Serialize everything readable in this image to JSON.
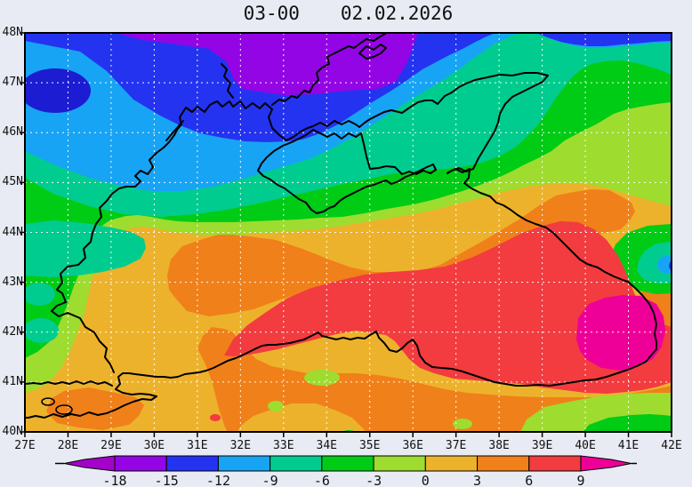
{
  "title": {
    "run_time": "03-00",
    "date": "02.02.2026"
  },
  "axes": {
    "x_labels": [
      "27E",
      "28E",
      "29E",
      "30E",
      "31E",
      "32E",
      "33E",
      "34E",
      "35E",
      "36E",
      "37E",
      "38E",
      "39E",
      "40E",
      "41E",
      "42E"
    ],
    "y_labels": [
      "48N",
      "47N",
      "46N",
      "45N",
      "44N",
      "43N",
      "42N",
      "41N",
      "40N"
    ]
  },
  "colorbar": {
    "labels": [
      "-18",
      "-15",
      "-12",
      "-9",
      "-6",
      "-3",
      "0",
      "3",
      "6",
      "9"
    ],
    "levels": [
      -18,
      -15,
      -12,
      -9,
      -6,
      -3,
      0,
      3,
      6,
      9
    ],
    "segment_colors": [
      "#9305E5",
      "#2433F0",
      "#17A4F5",
      "#00CC8F",
      "#00CB15",
      "#9EDC2F",
      "#EDB22B",
      "#F08019",
      "#F23C40"
    ],
    "below_range_color": "#A303C9",
    "above_range_color": "#EE0098"
  },
  "palette": {
    "bg": "#E9EBF4",
    "purple": "#9305E5",
    "blue": "#2433F0",
    "navy": "#1C1CD2",
    "lightblue": "#17A4F5",
    "teal": "#00CC8F",
    "green": "#00CB15",
    "yellowgreen": "#9EDC2F",
    "orangeyellow": "#EDB22B",
    "orange": "#F08019",
    "red": "#F23C40",
    "magenta": "#EE0098",
    "below": "#A303C9",
    "grid": "#FFFFFF",
    "coast": "#000000",
    "ink": "#111111"
  },
  "chart_data": {
    "type": "filled-contour-map",
    "title": "03-00   02.02.2026",
    "x_range_deg_east": [
      27,
      42
    ],
    "y_range_deg_north": [
      40,
      48
    ],
    "contour_levels": [
      -18,
      -15,
      -12,
      -9,
      -6,
      -3,
      0,
      3,
      6,
      9
    ],
    "legend_position": "bottom",
    "grid": true
  }
}
